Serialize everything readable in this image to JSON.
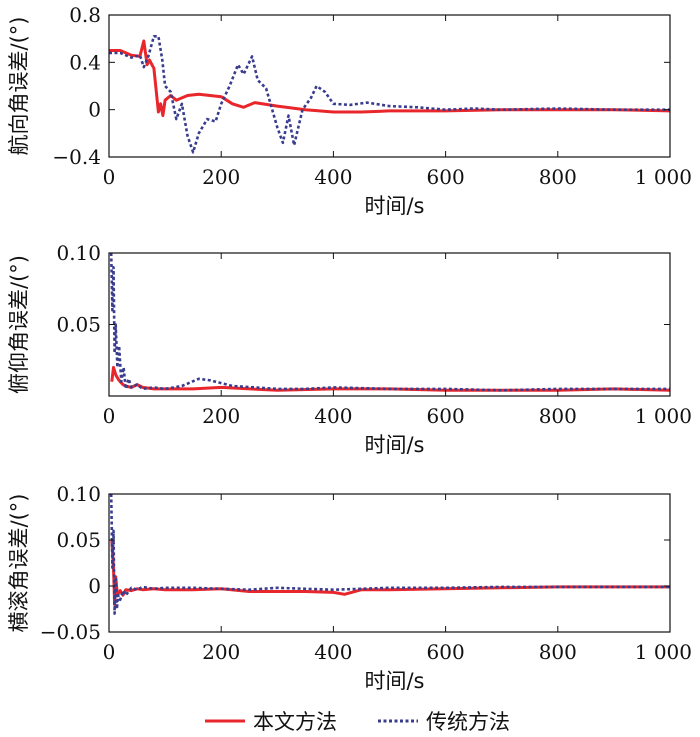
{
  "legend": [
    {
      "name": "本文方法",
      "color": "#e8262b",
      "dash": "solid"
    },
    {
      "name": "传统方法",
      "color": "#3a3c8e",
      "dash": "dotted"
    }
  ],
  "chart_data": [
    {
      "type": "line",
      "title": "",
      "xlabel": "时间/s",
      "ylabel": "航向角误差/(°)",
      "xlim": [
        0,
        1000
      ],
      "ylim": [
        -0.4,
        0.8
      ],
      "xticks": [
        0,
        200,
        400,
        600,
        800,
        1000
      ],
      "xtick_labels": [
        "0",
        "200",
        "400",
        "600",
        "800",
        "1 000"
      ],
      "yticks": [
        -0.4,
        0,
        0.4,
        0.8
      ],
      "ytick_labels": [
        "−0.4",
        "0",
        "0.4",
        "0.8"
      ],
      "series": [
        {
          "name": "本文方法",
          "x": [
            0,
            20,
            40,
            55,
            62,
            68,
            72,
            80,
            88,
            92,
            96,
            100,
            110,
            120,
            140,
            160,
            180,
            200,
            220,
            240,
            260,
            300,
            350,
            400,
            450,
            500,
            600,
            700,
            800,
            900,
            1000
          ],
          "y": [
            0.5,
            0.5,
            0.46,
            0.45,
            0.58,
            0.38,
            0.42,
            0.35,
            -0.02,
            0.05,
            -0.05,
            0.08,
            0.12,
            0.08,
            0.12,
            0.13,
            0.12,
            0.11,
            0.05,
            0.02,
            0.06,
            0.03,
            0.0,
            -0.02,
            -0.02,
            -0.01,
            -0.01,
            0.0,
            0.0,
            0.0,
            -0.01
          ]
        },
        {
          "name": "传统方法",
          "x": [
            0,
            20,
            40,
            55,
            62,
            70,
            80,
            88,
            95,
            100,
            110,
            120,
            130,
            140,
            150,
            160,
            175,
            190,
            200,
            215,
            230,
            240,
            255,
            265,
            280,
            300,
            310,
            320,
            330,
            345,
            360,
            370,
            385,
            400,
            430,
            460,
            500,
            550,
            600,
            650,
            700,
            800,
            900,
            1000
          ],
          "y": [
            0.48,
            0.48,
            0.44,
            0.46,
            0.36,
            0.45,
            0.62,
            0.62,
            0.42,
            0.2,
            0.15,
            -0.08,
            0.05,
            -0.22,
            -0.36,
            -0.2,
            -0.08,
            -0.1,
            0.05,
            0.2,
            0.38,
            0.3,
            0.45,
            0.25,
            0.18,
            -0.15,
            -0.28,
            -0.05,
            -0.3,
            0.0,
            0.1,
            0.2,
            0.15,
            0.05,
            0.04,
            0.06,
            0.03,
            0.02,
            0.0,
            0.01,
            0.0,
            0.01,
            0.0,
            0.0
          ]
        }
      ]
    },
    {
      "type": "line",
      "title": "",
      "xlabel": "时间/s",
      "ylabel": "俯仰角误差/(°)",
      "xlim": [
        0,
        1000
      ],
      "ylim": [
        0,
        0.1
      ],
      "xticks": [
        0,
        200,
        400,
        600,
        800,
        1000
      ],
      "xtick_labels": [
        "0",
        "200",
        "400",
        "600",
        "800",
        "1 000"
      ],
      "yticks": [
        0.05,
        0.1
      ],
      "ytick_labels": [
        "0.05",
        "0.10"
      ],
      "series": [
        {
          "name": "本文方法",
          "x": [
            5,
            8,
            12,
            16,
            20,
            25,
            30,
            40,
            50,
            60,
            80,
            100,
            150,
            200,
            300,
            400,
            500,
            600,
            700,
            800,
            900,
            1000
          ],
          "y": [
            0.01,
            0.02,
            0.015,
            0.012,
            0.01,
            0.008,
            0.007,
            0.006,
            0.008,
            0.006,
            0.005,
            0.005,
            0.005,
            0.006,
            0.004,
            0.005,
            0.005,
            0.004,
            0.004,
            0.004,
            0.005,
            0.004
          ]
        },
        {
          "name": "传统方法",
          "x": [
            4,
            6,
            8,
            10,
            12,
            15,
            18,
            22,
            26,
            30,
            35,
            40,
            50,
            60,
            80,
            100,
            130,
            160,
            180,
            200,
            220,
            260,
            300,
            350,
            400,
            500,
            600,
            700,
            800,
            900,
            1000
          ],
          "y": [
            0.1,
            0.06,
            0.09,
            0.03,
            0.05,
            0.02,
            0.035,
            0.01,
            0.02,
            0.005,
            0.012,
            0.006,
            0.008,
            0.005,
            0.006,
            0.005,
            0.007,
            0.012,
            0.011,
            0.009,
            0.007,
            0.006,
            0.005,
            0.005,
            0.006,
            0.005,
            0.005,
            0.004,
            0.005,
            0.005,
            0.005
          ]
        }
      ]
    },
    {
      "type": "line",
      "title": "",
      "xlabel": "时间/s",
      "ylabel": "横滚角误差/(°)",
      "xlim": [
        0,
        1000
      ],
      "ylim": [
        -0.05,
        0.1
      ],
      "xticks": [
        0,
        200,
        400,
        600,
        800,
        1000
      ],
      "xtick_labels": [
        "0",
        "200",
        "400",
        "600",
        "800",
        "1 000"
      ],
      "yticks": [
        -0.05,
        0,
        0.05,
        0.1
      ],
      "ytick_labels": [
        "−0.05",
        "0",
        "0.05",
        "0.10"
      ],
      "series": [
        {
          "name": "本文方法",
          "x": [
            5,
            8,
            10,
            12,
            15,
            20,
            25,
            30,
            40,
            50,
            60,
            80,
            100,
            150,
            200,
            250,
            300,
            350,
            400,
            420,
            450,
            500,
            600,
            700,
            800,
            900,
            1000
          ],
          "y": [
            0.05,
            0.02,
            -0.02,
            0.01,
            -0.01,
            -0.005,
            -0.01,
            -0.004,
            -0.005,
            -0.003,
            -0.004,
            -0.003,
            -0.004,
            -0.004,
            -0.003,
            -0.006,
            -0.006,
            -0.006,
            -0.007,
            -0.009,
            -0.004,
            -0.004,
            -0.003,
            -0.002,
            -0.001,
            -0.001,
            -0.001
          ]
        },
        {
          "name": "传统方法",
          "x": [
            4,
            6,
            8,
            10,
            12,
            14,
            16,
            20,
            25,
            30,
            40,
            50,
            60,
            80,
            100,
            150,
            200,
            250,
            300,
            350,
            400,
            450,
            500,
            600,
            700,
            800,
            900,
            1000
          ],
          "y": [
            0.1,
            0.02,
            0.06,
            -0.03,
            0.01,
            -0.025,
            -0.01,
            -0.015,
            -0.005,
            -0.01,
            -0.002,
            -0.004,
            -0.001,
            -0.003,
            -0.002,
            -0.002,
            -0.003,
            -0.004,
            -0.002,
            -0.003,
            -0.004,
            -0.003,
            -0.002,
            -0.002,
            -0.001,
            -0.001,
            -0.001,
            -0.001
          ]
        }
      ]
    }
  ]
}
